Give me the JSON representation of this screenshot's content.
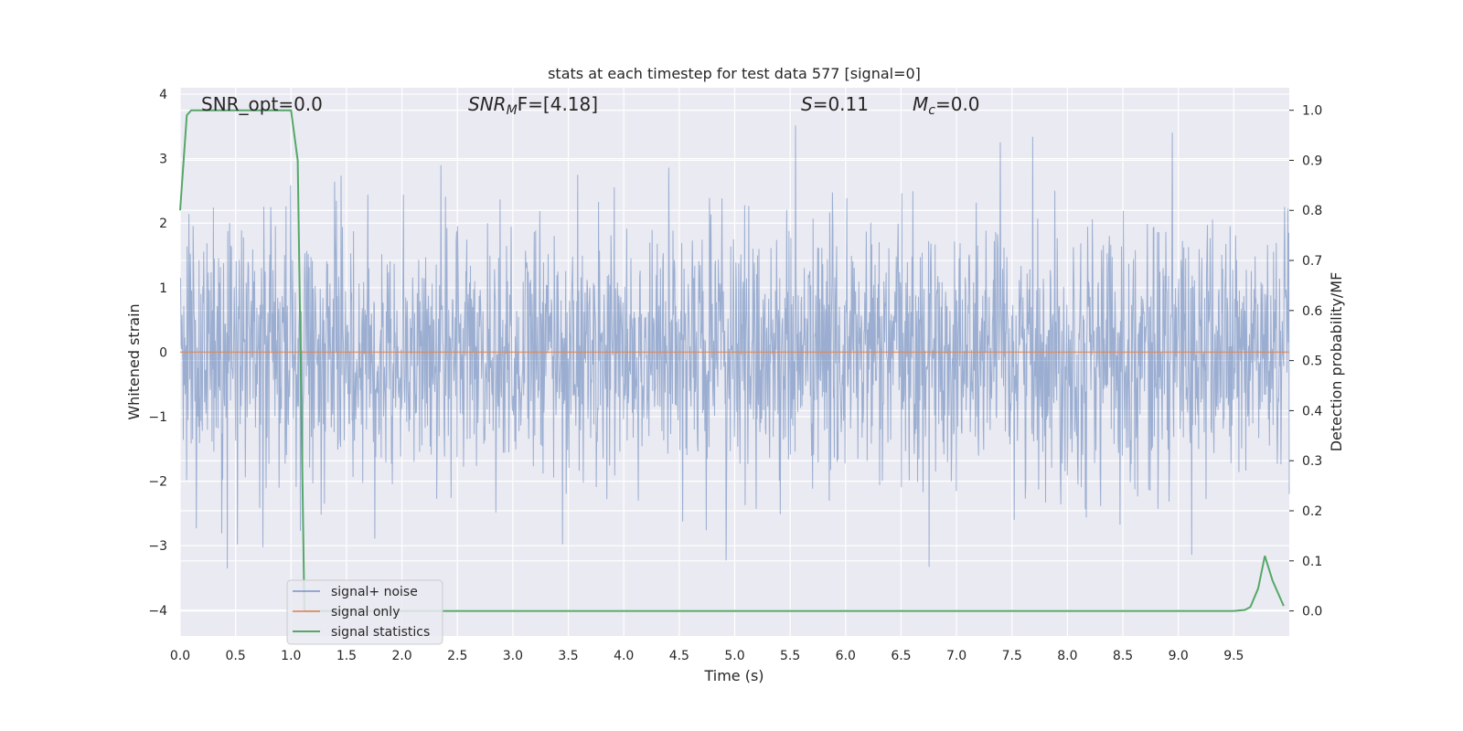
{
  "chart_data": {
    "type": "line",
    "title": "stats at each timestep for test data 577 [signal=0]",
    "xlabel": "Time (s)",
    "ylabel_left": "Whitened strain",
    "ylabel_right": "Detection probability/MF",
    "xlim": [
      0,
      10
    ],
    "ylim_left": [
      -4.4,
      4.1
    ],
    "ylim_right": [
      -0.05,
      1.045
    ],
    "x_ticks": [
      "0.0",
      "0.5",
      "1.0",
      "1.5",
      "2.0",
      "2.5",
      "3.0",
      "3.5",
      "4.0",
      "4.5",
      "5.0",
      "5.5",
      "6.0",
      "6.5",
      "7.0",
      "7.5",
      "8.0",
      "8.5",
      "9.0",
      "9.5"
    ],
    "y_left_ticks": [
      "4",
      "3",
      "2",
      "1",
      "0",
      "−1",
      "−2",
      "−3",
      "−4"
    ],
    "y_right_ticks": [
      "1.0",
      "0.9",
      "0.8",
      "0.7",
      "0.6",
      "0.5",
      "0.4",
      "0.3",
      "0.2",
      "0.1",
      "0.0"
    ],
    "grid": true,
    "legend_position": "lower-left",
    "annotations": {
      "snr_opt": "SNR_opt=0.0",
      "snr_mf_name": "SNR",
      "snr_mf_sub": "M",
      "snr_mf_rest": "F=[4.18]",
      "s_name": "S",
      "s_rest": "=0.11",
      "mc_name": "M",
      "mc_sub": "c",
      "mc_rest": "=0.0"
    },
    "series": [
      {
        "name": "signal+ noise",
        "color": "#4c72b0",
        "note_values": "dense random noise, std approx 1, range approx -4 to 3.8",
        "std": 1.0
      },
      {
        "name": "signal only",
        "color": "#dd8452",
        "x": [
          0,
          10
        ],
        "y": [
          0,
          0
        ]
      },
      {
        "name": "signal statistics",
        "color": "#55a868",
        "x": [
          0.0,
          0.06,
          0.1,
          0.2,
          0.5,
          0.8,
          1.0,
          1.06,
          1.12,
          1.2,
          2.0,
          5.0,
          9.0,
          9.5,
          9.6,
          9.65,
          9.72,
          9.78,
          9.85,
          9.95
        ],
        "y": [
          0.8,
          0.99,
          1.0,
          1.0,
          1.0,
          1.0,
          1.0,
          0.9,
          0.0,
          0.0,
          0.0,
          0.0,
          0.0,
          0.0,
          0.002,
          0.008,
          0.045,
          0.11,
          0.06,
          0.01
        ]
      }
    ]
  }
}
